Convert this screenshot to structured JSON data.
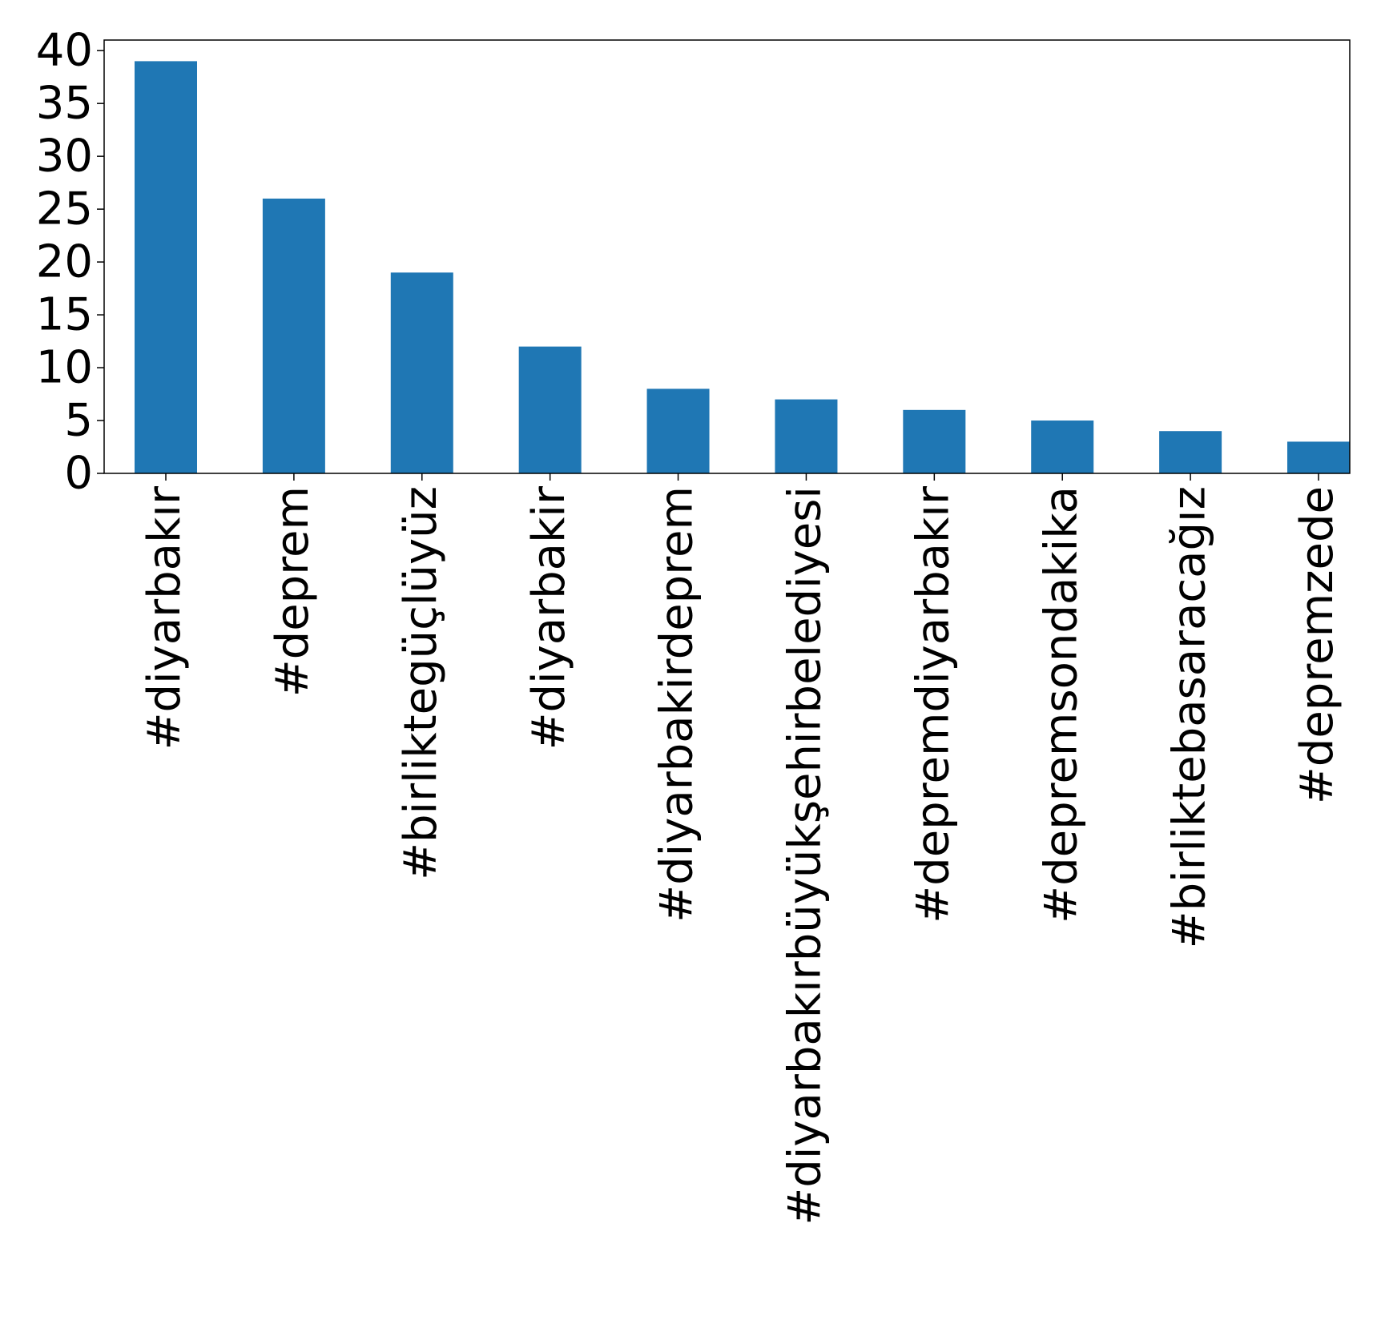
{
  "chart_data": {
    "type": "bar",
    "title": "",
    "xlabel": "",
    "ylabel": "",
    "categories": [
      "#diyarbakır",
      "#deprem",
      "#birliktegüçlüyüz",
      "#diyarbakir",
      "#diyarbakirdeprem",
      "#diyarbakırbüyükşehirbelediyesi",
      "#depremdiyarbakır",
      "#depremsondakika",
      "#birliktebasaracağız",
      "#depremzede"
    ],
    "values": [
      39,
      26,
      19,
      12,
      8,
      7,
      6,
      5,
      4,
      3
    ],
    "ylim": [
      0,
      41
    ],
    "yticks": [
      0,
      5,
      10,
      15,
      20,
      25,
      30,
      35,
      40
    ],
    "bar_color": "#1f77b4",
    "grid": false,
    "legend": "none"
  }
}
